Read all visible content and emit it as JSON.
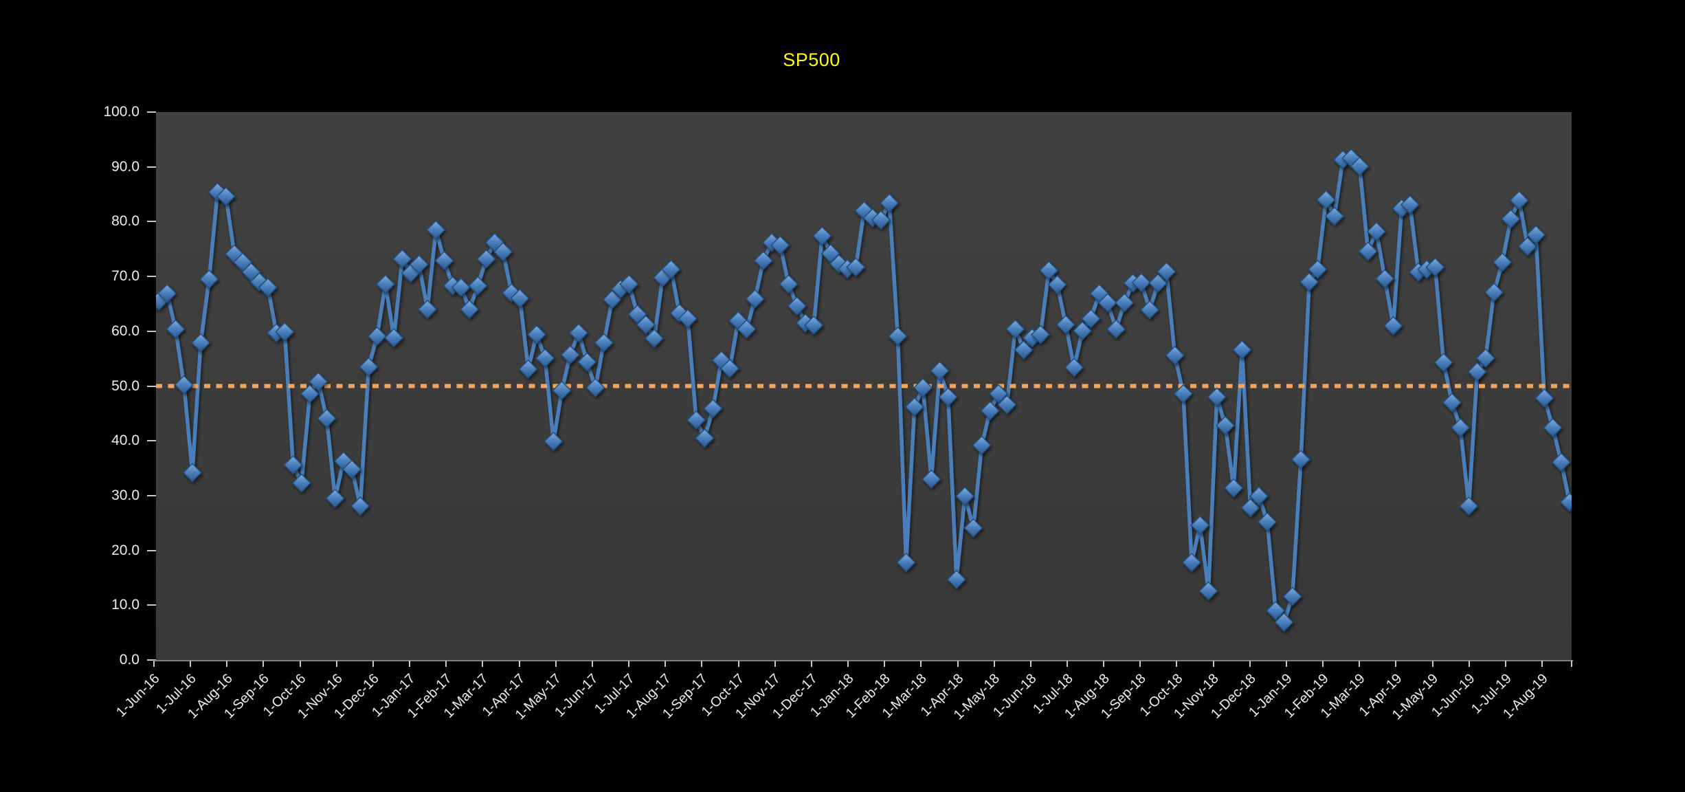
{
  "title": "SP500",
  "colors": {
    "page_bg": "#000000",
    "plot_bg_top": "#414141",
    "plot_bg_bottom": "#383838",
    "title_text": "#FFFF00",
    "axis_text": "#EDEDED",
    "tick_mark": "#C9C9C9",
    "axis_line": "#7F7F7F",
    "series_line": "#4A7EBB",
    "marker_light": "#7FACE0",
    "marker_mid": "#4A7EBB",
    "marker_dark": "#2B5890",
    "marker_stroke": "#24507E",
    "reference_line": "#F2A45C"
  },
  "chart_data": {
    "type": "line",
    "title": "SP500",
    "xlabel": "",
    "ylabel": "",
    "ylim": [
      0,
      100
    ],
    "grid": false,
    "legend": "none",
    "y_tick_labels": [
      "100.0",
      "90.0",
      "80.0",
      "70.0",
      "60.0",
      "50.0",
      "40.0",
      "30.0",
      "20.0",
      "10.0",
      "0.0"
    ],
    "x_tick_labels": [
      "1-Jun-16",
      "1-Jul-16",
      "1-Aug-16",
      "1-Sep-16",
      "1-Oct-16",
      "1-Nov-16",
      "1-Dec-16",
      "1-Jan-17",
      "1-Feb-17",
      "1-Mar-17",
      "1-Apr-17",
      "1-May-17",
      "1-Jun-17",
      "1-Jul-17",
      "1-Aug-17",
      "1-Sep-17",
      "1-Oct-17",
      "1-Nov-17",
      "1-Dec-17",
      "1-Jan-18",
      "1-Feb-18",
      "1-Mar-18",
      "1-Apr-18",
      "1-May-18",
      "1-Jun-18",
      "1-Jul-18",
      "1-Aug-18",
      "1-Sep-18",
      "1-Oct-18",
      "1-Nov-18",
      "1-Dec-18",
      "1-Jan-19",
      "1-Feb-19",
      "1-Mar-19",
      "1-Apr-19",
      "1-May-19",
      "1-Jun-19",
      "1-Jul-19",
      "1-Aug-19"
    ],
    "reference_line": {
      "value": 50,
      "style": "dotted"
    },
    "series": [
      {
        "name": "SP500",
        "cadence": "weekly",
        "values": [
          65.5,
          66.9,
          60.4,
          50.2,
          34.2,
          57.9,
          69.5,
          85.4,
          84.6,
          74.1,
          72.6,
          70.8,
          69.0,
          68.0,
          59.7,
          59.9,
          35.6,
          32.3,
          48.6,
          50.8,
          44.1,
          29.5,
          36.3,
          34.8,
          28.1,
          53.5,
          59.1,
          68.6,
          58.8,
          73.2,
          70.6,
          72.2,
          64.0,
          78.5,
          72.9,
          68.3,
          68.0,
          64.0,
          68.3,
          73.2,
          76.2,
          74.5,
          67.0,
          66.0,
          53.1,
          59.4,
          55.1,
          39.9,
          49.2,
          55.7,
          59.7,
          54.4,
          49.7,
          57.9,
          65.8,
          67.7,
          68.6,
          63.1,
          61.2,
          58.7,
          69.8,
          71.3,
          63.3,
          62.3,
          43.8,
          40.5,
          45.9,
          54.7,
          53.2,
          61.9,
          60.4,
          65.9,
          72.9,
          76.2,
          75.7,
          68.6,
          64.6,
          61.5,
          61.1,
          77.4,
          74.2,
          72.3,
          71.4,
          71.7,
          82.0,
          80.7,
          80.3,
          83.4,
          59.1,
          17.8,
          46.2,
          49.7,
          33.0,
          52.8,
          48.0,
          14.7,
          29.9,
          24.1,
          39.2,
          45.5,
          48.6,
          46.6,
          60.4,
          56.6,
          58.8,
          59.4,
          71.1,
          68.5,
          61.2,
          53.4,
          60.1,
          62.3,
          66.9,
          65.2,
          60.4,
          65.2,
          68.8,
          68.9,
          63.9,
          68.8,
          70.9,
          55.6,
          48.6,
          17.8,
          24.6,
          12.6,
          48.0,
          42.8,
          31.4,
          56.6,
          27.8,
          29.9,
          25.2,
          9.0,
          6.9,
          11.6,
          36.6,
          69.0,
          71.3,
          84.0,
          81.0,
          91.3,
          91.6,
          90.1,
          74.6,
          78.2,
          69.6,
          61.0,
          82.4,
          83.1,
          70.8,
          71.3,
          71.7,
          54.3,
          47.0,
          42.4,
          28.1,
          52.6,
          55.1,
          67.1,
          72.6,
          80.5,
          83.9,
          75.5,
          77.6,
          47.8,
          42.4,
          36.1,
          28.8
        ]
      }
    ]
  }
}
